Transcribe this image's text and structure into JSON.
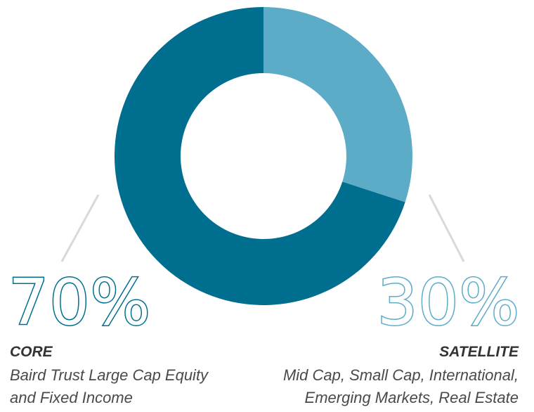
{
  "chart_data": {
    "type": "pie",
    "categories": [
      "CORE",
      "SATELLITE"
    ],
    "values": [
      70,
      30
    ],
    "colors": [
      "#006e8e",
      "#5cabc7"
    ],
    "donut": true,
    "legend": "none"
  },
  "core": {
    "percent_label": "70%",
    "title": "CORE",
    "description_lines": [
      "Baird Trust Large Cap Equity",
      "and Fixed Income"
    ]
  },
  "satellite": {
    "percent_label": "30%",
    "title": "SATELLITE",
    "description_lines": [
      "Mid Cap, Small Cap, International,",
      "Emerging Markets, Real Estate"
    ]
  }
}
